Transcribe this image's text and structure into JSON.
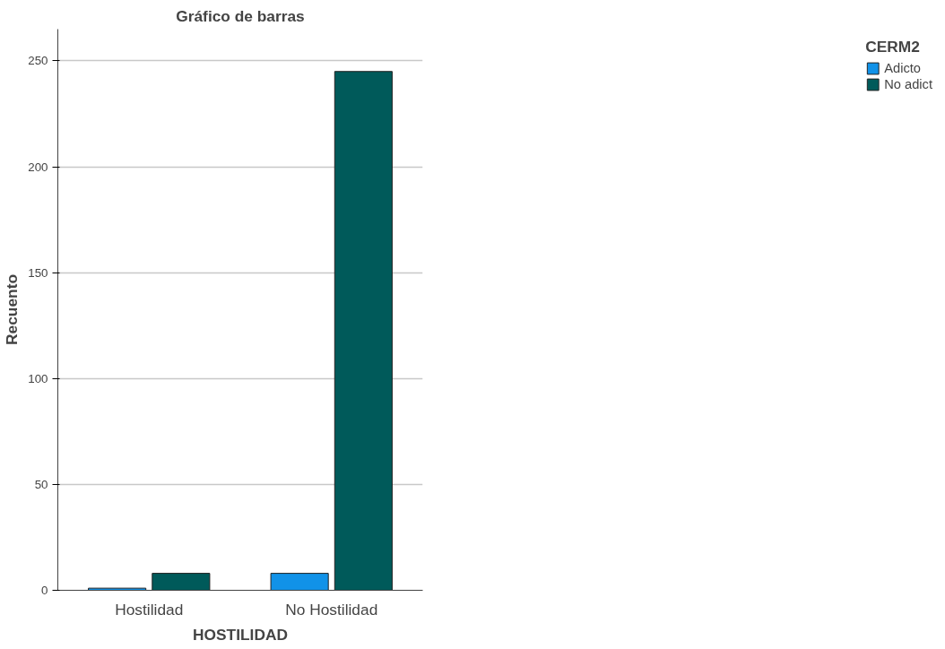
{
  "chart_data": {
    "type": "bar",
    "title": "Gráfico de barras",
    "xlabel": "HOSTILIDAD",
    "ylabel": "Recuento",
    "legend_title": "CERM2",
    "categories": [
      "Hostilidad",
      "No Hostilidad"
    ],
    "series": [
      {
        "name": "Adicto",
        "color": "#1192e8",
        "values": [
          1,
          8
        ]
      },
      {
        "name": "No adict",
        "color": "#005a5a",
        "values": [
          8,
          245
        ]
      }
    ],
    "ylim": [
      0,
      265
    ],
    "yticks": [
      0,
      50,
      100,
      150,
      200,
      250
    ],
    "grid": "y",
    "legend": "right"
  }
}
